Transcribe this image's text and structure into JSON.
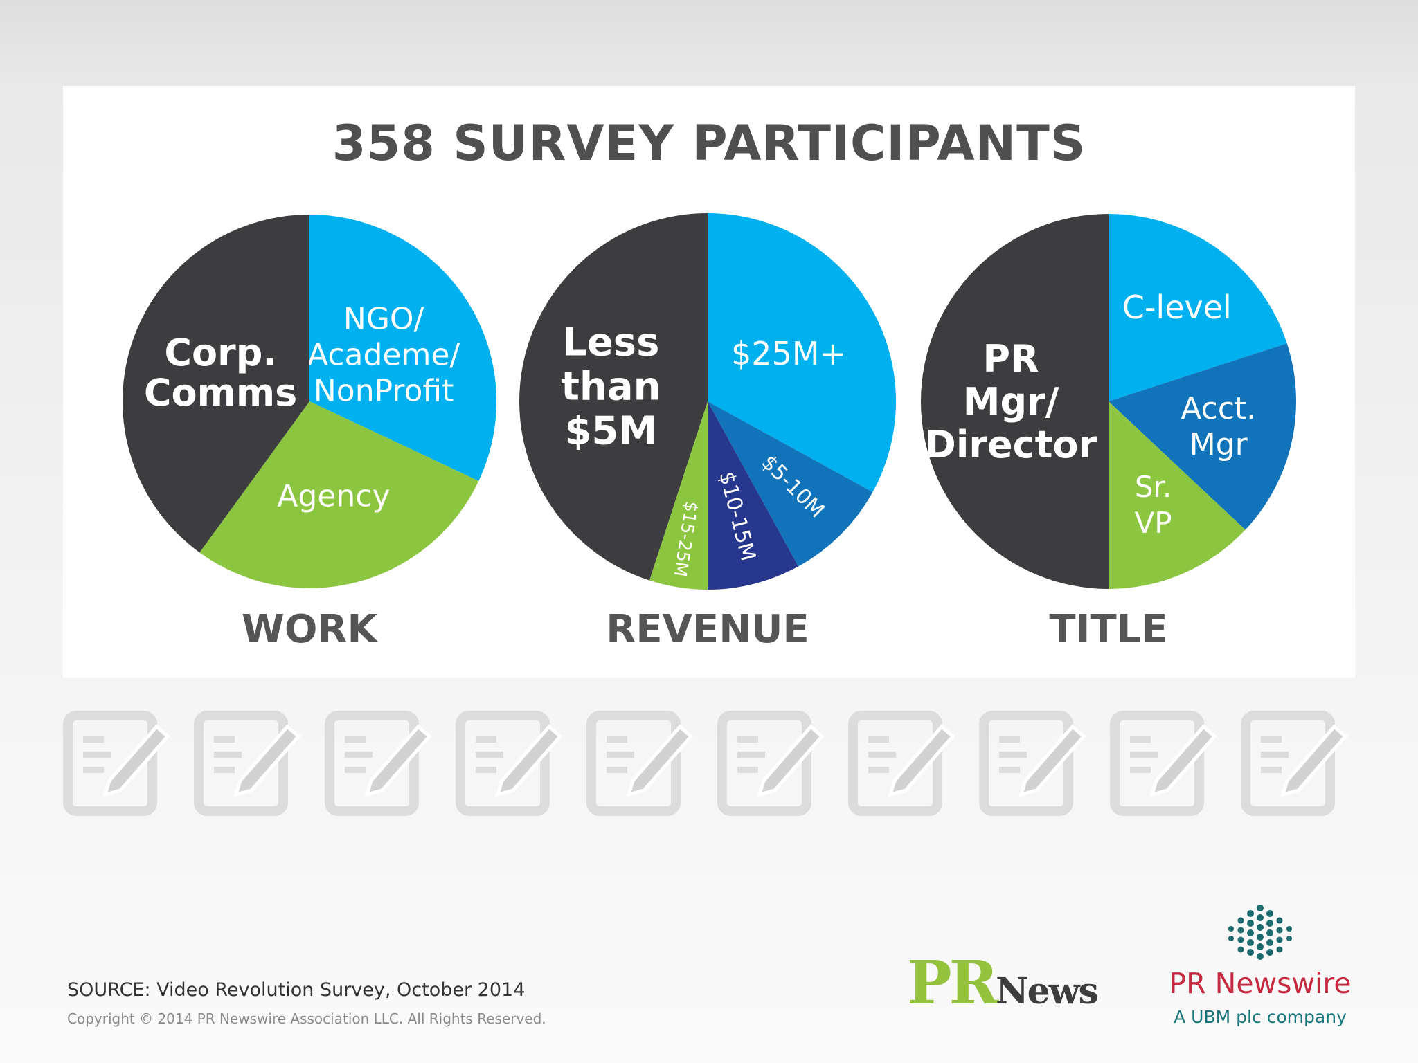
{
  "title": "358 SURVEY PARTICIPANTS",
  "chart_data": [
    {
      "type": "pie",
      "title": "WORK",
      "slices": [
        {
          "label": "NGO/ Academe/ NonProfit",
          "value": 32,
          "color": "#00b0ef"
        },
        {
          "label": "Agency",
          "value": 28,
          "color": "#8cc540"
        },
        {
          "label": "Corp. Comms",
          "value": 40,
          "color": "#3d3d3f"
        }
      ]
    },
    {
      "type": "pie",
      "title": "REVENUE",
      "slices": [
        {
          "label": "$25M+",
          "value": 33,
          "color": "#00b0ef"
        },
        {
          "label": "$5-10M",
          "value": 9,
          "color": "#1173b9"
        },
        {
          "label": "$10-15M",
          "value": 8,
          "color": "#27378e"
        },
        {
          "label": "$15-25M",
          "value": 5,
          "color": "#8cc540"
        },
        {
          "label": "Less than $5M",
          "value": 45,
          "color": "#3d3d3f"
        }
      ]
    },
    {
      "type": "pie",
      "title": "TITLE",
      "slices": [
        {
          "label": "C-level",
          "value": 20,
          "color": "#00b0ef"
        },
        {
          "label": "Acct. Mgr",
          "value": 17,
          "color": "#1173b9"
        },
        {
          "label": "Sr. VP",
          "value": 13,
          "color": "#8cc540"
        },
        {
          "label": "PR Mgr/ Director",
          "value": 50,
          "color": "#3d3d3f"
        }
      ]
    }
  ],
  "footer": {
    "source": "SOURCE: Video Revolution Survey, October 2014",
    "copyright": "Copyright © 2014 PR Newswire Association LLC. All Rights Reserved."
  },
  "logos": {
    "prnews_pr": "PR",
    "prnews_news": "News",
    "prnewswire_name": "PR Newswire",
    "prnewswire_tagline": "A UBM plc company"
  },
  "decor": {
    "icon_name": "survey-form-icon",
    "icon_count": 10
  }
}
